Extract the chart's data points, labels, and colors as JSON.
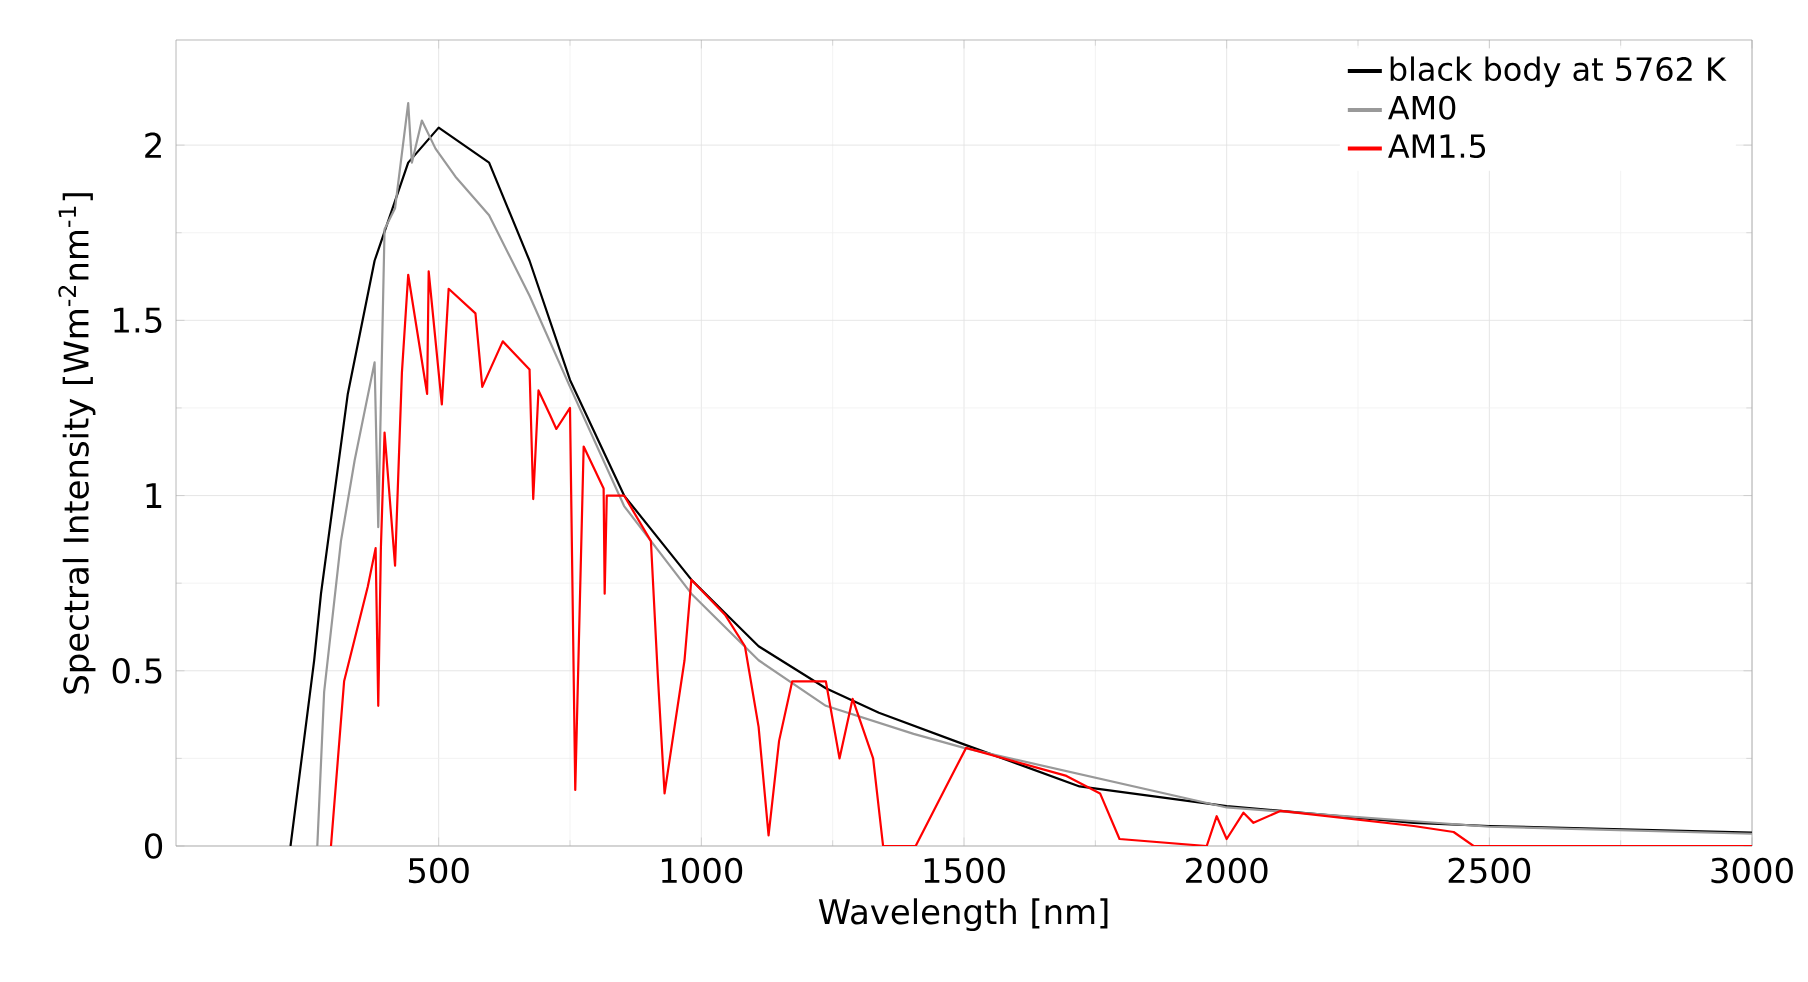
{
  "chart_data": {
    "type": "line",
    "xlabel": "Wavelength [nm]",
    "ylabel": "Spectral Intensity [Wm$^{-2}$nm$^{-1}$]",
    "xlim": [
      0,
      3000
    ],
    "ylim": [
      0,
      2.3
    ],
    "xticks": [
      500,
      1000,
      1500,
      2000,
      2500,
      3000
    ],
    "yticks": [
      0,
      0.5,
      1,
      1.5,
      2
    ],
    "grid": true,
    "legend": "top right",
    "marker": "none",
    "line_style": "solid",
    "series": [
      {
        "name": "black body at 5762 K",
        "color": "#000000",
        "x": [
          218,
          263,
          276,
          327,
          378,
          442,
          500,
          596,
          673,
          750,
          853,
          981,
          1109,
          1237,
          1338,
          1500,
          1720,
          2000,
          2356,
          2500,
          3000
        ],
        "values": [
          0,
          0.53,
          0.72,
          1.29,
          1.67,
          1.95,
          2.05,
          1.95,
          1.67,
          1.33,
          1.0,
          0.76,
          0.57,
          0.45,
          0.38,
          0.29,
          0.17,
          0.114,
          0.066,
          0.057,
          0.038
        ]
      },
      {
        "name": "AM0",
        "color": "#999999",
        "x": [
          269,
          282,
          314,
          340,
          378,
          385,
          397,
          417,
          442,
          449,
          468,
          494,
          532,
          596,
          673,
          750,
          853,
          981,
          1109,
          1237,
          1404,
          1500,
          2000,
          2500,
          3000
        ],
        "values": [
          0,
          0.44,
          0.87,
          1.1,
          1.38,
          0.91,
          1.76,
          1.82,
          2.12,
          1.95,
          2.07,
          1.99,
          1.91,
          1.8,
          1.57,
          1.31,
          0.97,
          0.72,
          0.53,
          0.4,
          0.32,
          0.28,
          0.11,
          0.055,
          0.035
        ]
      },
      {
        "name": "AM1.5",
        "color": "#ff0000",
        "x": [
          295,
          320,
          340,
          365,
          380,
          385,
          390,
          397,
          417,
          430,
          442,
          478,
          481,
          506,
          519,
          570,
          583,
          622,
          673,
          680,
          690,
          712,
          724,
          750,
          760,
          776,
          814,
          816,
          820,
          853,
          904,
          917,
          930,
          968,
          981,
          1045,
          1083,
          1109,
          1128,
          1148,
          1173,
          1237,
          1263,
          1288,
          1327,
          1346,
          1408,
          1466,
          1504,
          1695,
          1759,
          1796,
          1962,
          1981,
          2000,
          2032,
          2051,
          2102,
          2356,
          2432,
          2470,
          3000
        ],
        "values": [
          0,
          0.47,
          0.59,
          0.74,
          0.85,
          0.4,
          0.85,
          1.18,
          0.8,
          1.35,
          1.63,
          1.29,
          1.64,
          1.26,
          1.59,
          1.52,
          1.31,
          1.44,
          1.36,
          0.99,
          1.3,
          1.23,
          1.19,
          1.25,
          0.16,
          1.14,
          1.02,
          0.72,
          1.0,
          1.0,
          0.87,
          0.49,
          0.15,
          0.53,
          0.76,
          0.66,
          0.57,
          0.34,
          0.03,
          0.3,
          0.47,
          0.47,
          0.25,
          0.42,
          0.25,
          0,
          0,
          0.17,
          0.28,
          0.2,
          0.15,
          0.02,
          0,
          0.085,
          0.02,
          0.095,
          0.066,
          0.1,
          0.057,
          0.04,
          0,
          0
        ]
      }
    ]
  }
}
